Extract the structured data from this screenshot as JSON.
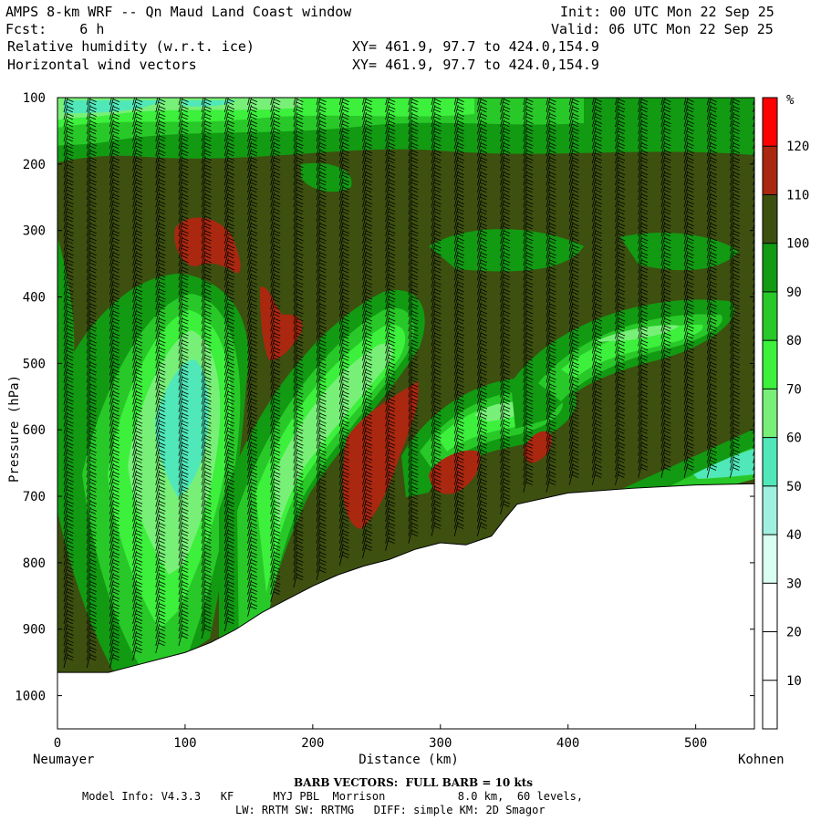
{
  "header": {
    "title": "AMPS 8-km WRF -- Qn Maud Land Coast window",
    "init": "Init: 00 UTC Mon 22 Sep 25",
    "fcst": "Fcst:    6 h",
    "valid": "Valid: 06 UTC Mon 22 Sep 25",
    "field1": "Relative humidity (w.r.t. ice)",
    "field1_xy": "XY= 461.9, 97.7 to 424.0,154.9",
    "field2": "Horizontal wind vectors",
    "field2_xy": "XY= 461.9, 97.7 to 424.0,154.9"
  },
  "footer": {
    "barb_note": "BARB VECTORS:  FULL BARB = 10 kts",
    "model_info": "Model Info: V4.3.3   KF      MYJ PBL  Morrison           8.0 km,  60 levels,",
    "physics": "LW: RRTM SW: RRTMG   DIFF: simple KM: 2D Smagor"
  },
  "chart_data": {
    "type": "heatmap",
    "title": "Relative humidity (w.r.t. ice)",
    "xlabel": "Distance (km)",
    "ylabel": "Pressure (hPa)",
    "xlim": [
      0,
      546
    ],
    "ylim": [
      1050,
      100
    ],
    "x_ticks": [
      0,
      100,
      200,
      300,
      400,
      500
    ],
    "y_ticks": [
      100,
      200,
      300,
      400,
      500,
      600,
      700,
      800,
      900,
      1000
    ],
    "x_endpoints": {
      "left": "Neumayer",
      "right": "Kohnen"
    },
    "colorbar": {
      "unit": "%",
      "levels": [
        10,
        20,
        30,
        40,
        50,
        60,
        70,
        80,
        90,
        100,
        110,
        120
      ],
      "colors": [
        "#ffffff",
        "#ffffff",
        "#ffffff",
        "#d8fff0",
        "#a0f0e0",
        "#50e8b8",
        "#78f078",
        "#3cf03c",
        "#28c828",
        "#129a12",
        "#3d5010",
        "#aa2810",
        "#ff0000"
      ]
    },
    "terrain_pressure": [
      [
        0,
        965
      ],
      [
        40,
        965
      ],
      [
        60,
        955
      ],
      [
        80,
        945
      ],
      [
        100,
        935
      ],
      [
        120,
        920
      ],
      [
        140,
        900
      ],
      [
        160,
        875
      ],
      [
        180,
        855
      ],
      [
        200,
        835
      ],
      [
        220,
        818
      ],
      [
        240,
        805
      ],
      [
        260,
        795
      ],
      [
        280,
        780
      ],
      [
        300,
        770
      ],
      [
        320,
        773
      ],
      [
        340,
        760
      ],
      [
        350,
        735
      ],
      [
        360,
        712
      ],
      [
        400,
        695
      ],
      [
        450,
        688
      ],
      [
        500,
        683
      ],
      [
        546,
        681
      ]
    ],
    "wind_barbs": "FULL BARB = 10 kts"
  }
}
